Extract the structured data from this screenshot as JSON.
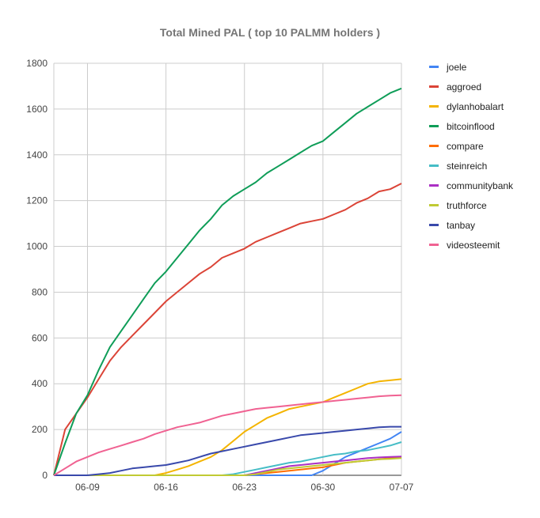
{
  "chart_data": {
    "type": "line",
    "title": "Total Mined PAL ( top 10 PALMM holders )",
    "xlabel": "",
    "ylabel": "",
    "ylim": [
      0,
      1800
    ],
    "yticks": [
      0,
      200,
      400,
      600,
      800,
      1000,
      1200,
      1400,
      1600,
      1800
    ],
    "xticks": [
      "06-09",
      "06-16",
      "06-23",
      "06-30",
      "07-07"
    ],
    "grid": true,
    "legend_position": "right",
    "x": [
      "06-06",
      "06-07",
      "06-08",
      "06-09",
      "06-10",
      "06-11",
      "06-12",
      "06-13",
      "06-14",
      "06-15",
      "06-16",
      "06-17",
      "06-18",
      "06-19",
      "06-20",
      "06-21",
      "06-22",
      "06-23",
      "06-24",
      "06-25",
      "06-26",
      "06-27",
      "06-28",
      "06-29",
      "06-30",
      "07-01",
      "07-02",
      "07-03",
      "07-04",
      "07-05",
      "07-06",
      "07-07"
    ],
    "series": [
      {
        "name": "joele",
        "color": "#4285f4",
        "values": [
          0,
          0,
          0,
          0,
          0,
          0,
          0,
          0,
          0,
          0,
          0,
          0,
          0,
          0,
          0,
          0,
          0,
          0,
          0,
          0,
          0,
          0,
          0,
          0,
          20,
          50,
          80,
          100,
          120,
          140,
          160,
          190
        ]
      },
      {
        "name": "aggroed",
        "color": "#db4437",
        "values": [
          0,
          200,
          270,
          340,
          420,
          500,
          560,
          610,
          660,
          710,
          760,
          800,
          840,
          880,
          910,
          950,
          970,
          990,
          1020,
          1040,
          1060,
          1080,
          1100,
          1110,
          1120,
          1140,
          1160,
          1190,
          1210,
          1240,
          1250,
          1275
        ]
      },
      {
        "name": "dylanhobalart",
        "color": "#f4b400",
        "values": [
          0,
          0,
          0,
          0,
          0,
          0,
          0,
          0,
          0,
          0,
          10,
          25,
          40,
          60,
          80,
          110,
          150,
          190,
          220,
          250,
          270,
          290,
          300,
          310,
          320,
          340,
          360,
          380,
          400,
          410,
          415,
          420
        ]
      },
      {
        "name": "bitcoinflood",
        "color": "#0f9d58",
        "values": [
          0,
          140,
          270,
          350,
          460,
          560,
          630,
          700,
          770,
          840,
          890,
          950,
          1010,
          1070,
          1120,
          1180,
          1220,
          1250,
          1280,
          1320,
          1350,
          1380,
          1410,
          1440,
          1460,
          1500,
          1540,
          1580,
          1610,
          1640,
          1670,
          1690
        ]
      },
      {
        "name": "compare",
        "color": "#ff6d00",
        "values": [
          0,
          0,
          0,
          0,
          0,
          0,
          0,
          0,
          0,
          0,
          0,
          0,
          0,
          0,
          0,
          0,
          0,
          0,
          5,
          10,
          15,
          20,
          25,
          30,
          35,
          45,
          55,
          60,
          65,
          70,
          75,
          80
        ]
      },
      {
        "name": "steinreich",
        "color": "#46bdc6",
        "values": [
          0,
          0,
          0,
          0,
          0,
          0,
          0,
          0,
          0,
          0,
          0,
          0,
          0,
          0,
          0,
          0,
          5,
          15,
          25,
          35,
          45,
          55,
          60,
          70,
          80,
          90,
          95,
          105,
          110,
          120,
          130,
          145
        ]
      },
      {
        "name": "communitybank",
        "color": "#ab30c4",
        "values": [
          0,
          0,
          0,
          0,
          0,
          0,
          0,
          0,
          0,
          0,
          0,
          0,
          0,
          0,
          0,
          0,
          0,
          0,
          10,
          20,
          30,
          40,
          45,
          50,
          55,
          60,
          65,
          70,
          75,
          78,
          80,
          82
        ]
      },
      {
        "name": "truthforce",
        "color": "#c0ca33",
        "values": [
          0,
          0,
          0,
          0,
          0,
          0,
          0,
          0,
          0,
          0,
          0,
          0,
          0,
          0,
          0,
          0,
          0,
          0,
          5,
          15,
          25,
          30,
          35,
          40,
          45,
          50,
          55,
          60,
          65,
          70,
          72,
          75
        ]
      },
      {
        "name": "tanbay",
        "color": "#3949ab",
        "values": [
          0,
          0,
          0,
          0,
          5,
          10,
          20,
          30,
          35,
          40,
          45,
          55,
          65,
          80,
          95,
          105,
          115,
          125,
          135,
          145,
          155,
          165,
          175,
          180,
          185,
          190,
          195,
          200,
          205,
          210,
          212,
          212
        ]
      },
      {
        "name": "videosteemit",
        "color": "#f06292",
        "values": [
          0,
          30,
          60,
          80,
          100,
          115,
          130,
          145,
          160,
          180,
          195,
          210,
          220,
          230,
          245,
          260,
          270,
          280,
          290,
          295,
          300,
          305,
          310,
          315,
          320,
          325,
          330,
          335,
          340,
          345,
          348,
          350
        ]
      }
    ]
  }
}
